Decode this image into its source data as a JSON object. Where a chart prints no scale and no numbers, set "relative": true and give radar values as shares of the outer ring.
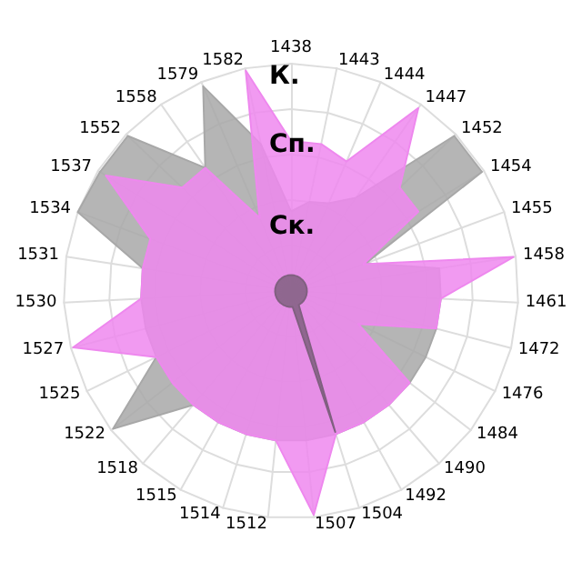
{
  "chart_data": {
    "type": "radar",
    "relative": true,
    "marker": "none",
    "categories": [
      "1438",
      "1443",
      "1444",
      "1447",
      "1452",
      "1454",
      "1455",
      "1458",
      "1461",
      "1472",
      "1476",
      "1484",
      "1490",
      "1492",
      "1504",
      "1507",
      "1512",
      "1514",
      "1515",
      "1518",
      "1522",
      "1525",
      "1527",
      "1530",
      "1531",
      "1534",
      "1537",
      "1552",
      "1558",
      "1579",
      "1582"
    ],
    "annotations": [
      "К.",
      "Сп.",
      "Ск."
    ],
    "series": [
      {
        "color": "#a8a8a8",
        "values": [
          0.35,
          0.4,
          0.42,
          0.5,
          0.99,
          0.99,
          0.35,
          0.66,
          0.66,
          0.66,
          0.66,
          0.66,
          0.66,
          0.66,
          0.66,
          0.66,
          0.66,
          0.66,
          0.66,
          0.66,
          0.99,
          0.66,
          0.66,
          0.66,
          0.66,
          1,
          0.99,
          0.99,
          0.66,
          0.98,
          0.66
        ]
      },
      {
        "color": "#ee88ee",
        "values": [
          0.66,
          0.66,
          0.62,
          0.98,
          0.66,
          0.66,
          0.34,
          0.99,
          0.66,
          0.66,
          0.33,
          0.66,
          0.66,
          0.66,
          0.66,
          0.99,
          0.66,
          0.66,
          0.66,
          0.66,
          0.66,
          0.66,
          0.99,
          0.66,
          0.66,
          0.66,
          0.96,
          0.66,
          0.66,
          0.35,
          0.99
        ]
      },
      {
        "color": "#806080",
        "values": [
          0.07,
          0.07,
          0.07,
          0.07,
          0.07,
          0.07,
          0.07,
          0.07,
          0.07,
          0.07,
          0.07,
          0.07,
          0.07,
          0.07,
          0.65,
          0.07,
          0.07,
          0.07,
          0.07,
          0.07,
          0.07,
          0.07,
          0.07,
          0.07,
          0.07,
          0.07,
          0.07,
          0.07,
          0.07,
          0.07,
          0.07
        ]
      }
    ]
  }
}
